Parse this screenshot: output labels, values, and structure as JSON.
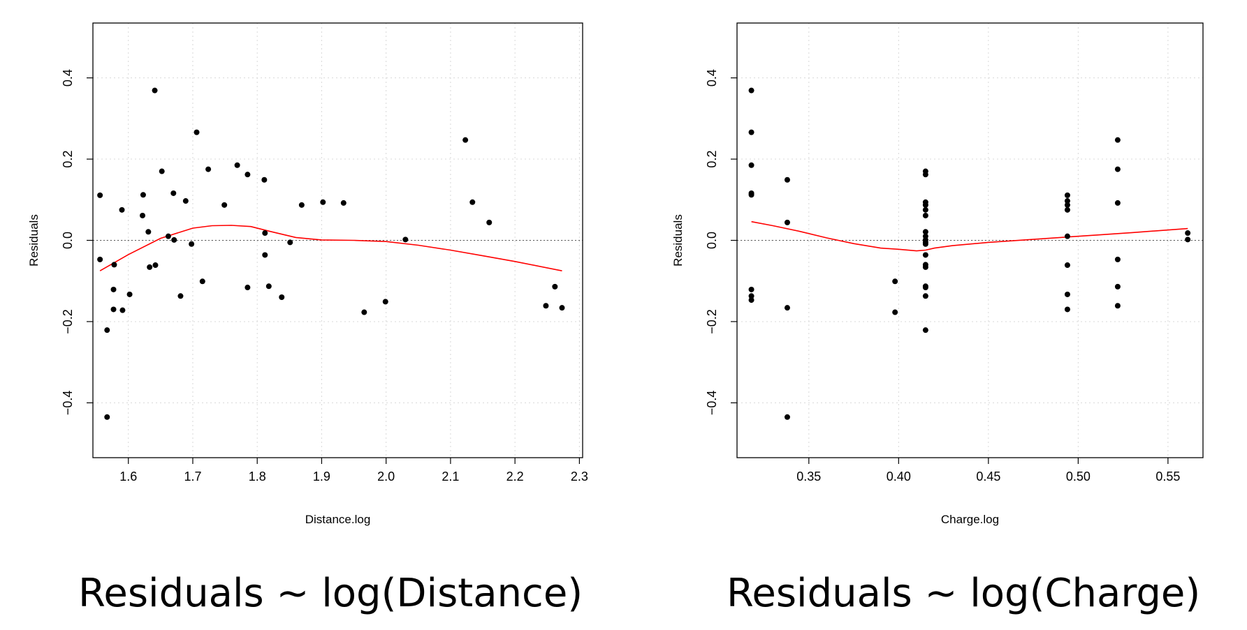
{
  "chart_data": [
    {
      "type": "scatter",
      "title": "",
      "caption": "Residuals ∼ log(Distance)",
      "xlabel": "Distance.log",
      "ylabel": "Residuals",
      "xlim": [
        1.545,
        2.305
      ],
      "ylim": [
        -0.535,
        0.535
      ],
      "xticks": [
        "1.6",
        "1.7",
        "1.8",
        "1.9",
        "2.0",
        "2.1",
        "2.2",
        "2.3"
      ],
      "yticks": [
        "−0.4",
        "−0.2",
        "0.0",
        "0.2",
        "0.4"
      ],
      "grid": true,
      "reference_line": 0.0,
      "point_color": "#000000",
      "smooth_color": "#ff0000",
      "series": [
        {
          "x": [
            1.556,
            1.556,
            1.567,
            1.567,
            1.577,
            1.577,
            1.578,
            1.59,
            1.591,
            1.602,
            1.622,
            1.623,
            1.631,
            1.633,
            1.641,
            1.642,
            1.652,
            1.662,
            1.67,
            1.671,
            1.681,
            1.689,
            1.698,
            1.706,
            1.715,
            1.724,
            1.749,
            1.769,
            1.785,
            1.785,
            1.811,
            1.812,
            1.812,
            1.818,
            1.838,
            1.851,
            1.869,
            1.902,
            1.934,
            1.966,
            1.999,
            2.03,
            2.123,
            2.134,
            2.16,
            2.248,
            2.262,
            2.273
          ],
          "y": [
            0.111,
            -0.047,
            -0.221,
            -0.435,
            -0.121,
            -0.17,
            -0.06,
            0.075,
            -0.172,
            -0.133,
            0.061,
            0.112,
            0.021,
            -0.066,
            0.369,
            -0.061,
            0.17,
            0.01,
            0.116,
            0.001,
            -0.137,
            0.097,
            -0.009,
            0.266,
            -0.101,
            0.175,
            0.087,
            0.185,
            0.162,
            -0.116,
            0.149,
            0.018,
            -0.036,
            -0.113,
            -0.14,
            -0.005,
            0.087,
            0.094,
            0.092,
            -0.177,
            -0.151,
            0.002,
            0.247,
            0.094,
            0.044,
            -0.161,
            -0.114,
            -0.166
          ]
        }
      ],
      "smooth": {
        "x": [
          1.556,
          1.6,
          1.65,
          1.7,
          1.73,
          1.76,
          1.79,
          1.82,
          1.86,
          1.9,
          1.95,
          2.0,
          2.05,
          2.1,
          2.15,
          2.2,
          2.273
        ],
        "y": [
          -0.075,
          -0.035,
          0.005,
          0.03,
          0.036,
          0.037,
          0.034,
          0.022,
          0.007,
          0.001,
          0.0,
          -0.003,
          -0.012,
          -0.024,
          -0.038,
          -0.052,
          -0.075
        ]
      }
    },
    {
      "type": "scatter",
      "title": "",
      "caption": "Residuals ∼ log(Charge)",
      "xlabel": "Charge.log",
      "ylabel": "Residuals",
      "xlim": [
        0.31,
        0.5695
      ],
      "ylim": [
        -0.535,
        0.535
      ],
      "xticks": [
        "0.35",
        "0.40",
        "0.45",
        "0.50",
        "0.55"
      ],
      "yticks": [
        "−0.4",
        "−0.2",
        "0.0",
        "0.2",
        "0.4"
      ],
      "grid": true,
      "reference_line": 0.0,
      "point_color": "#000000",
      "smooth_color": "#ff0000",
      "series": [
        {
          "x": [
            0.318,
            0.318,
            0.318,
            0.318,
            0.318,
            0.318,
            0.318,
            0.318,
            0.338,
            0.338,
            0.338,
            0.338,
            0.398,
            0.398,
            0.415,
            0.415,
            0.415,
            0.415,
            0.415,
            0.415,
            0.415,
            0.415,
            0.415,
            0.415,
            0.415,
            0.415,
            0.415,
            0.415,
            0.415,
            0.415,
            0.415,
            0.415,
            0.494,
            0.494,
            0.494,
            0.494,
            0.494,
            0.494,
            0.494,
            0.494,
            0.522,
            0.522,
            0.522,
            0.522,
            0.522,
            0.522,
            0.561,
            0.561
          ],
          "y": [
            0.369,
            0.266,
            0.185,
            0.116,
            0.112,
            -0.121,
            -0.137,
            -0.147,
            0.149,
            0.044,
            -0.166,
            -0.435,
            -0.101,
            -0.177,
            0.17,
            0.162,
            0.094,
            0.087,
            0.075,
            0.061,
            0.021,
            0.01,
            0.001,
            -0.005,
            -0.009,
            -0.036,
            -0.06,
            -0.066,
            -0.113,
            -0.116,
            -0.137,
            -0.221,
            0.111,
            0.097,
            0.087,
            0.075,
            0.01,
            -0.061,
            -0.133,
            -0.17,
            0.247,
            0.175,
            0.092,
            -0.047,
            -0.114,
            -0.161,
            0.018,
            0.002
          ]
        }
      ],
      "smooth": {
        "x": [
          0.318,
          0.33,
          0.345,
          0.36,
          0.375,
          0.39,
          0.4,
          0.41,
          0.415,
          0.42,
          0.43,
          0.45,
          0.47,
          0.49,
          0.51,
          0.53,
          0.561
        ],
        "y": [
          0.046,
          0.036,
          0.022,
          0.006,
          -0.008,
          -0.019,
          -0.022,
          -0.026,
          -0.024,
          -0.019,
          -0.013,
          -0.005,
          0.001,
          0.007,
          0.013,
          0.019,
          0.029
        ]
      }
    }
  ]
}
